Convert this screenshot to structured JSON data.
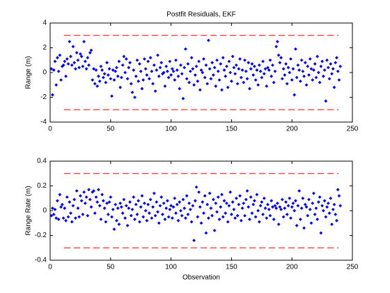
{
  "chart_data": [
    {
      "type": "scatter",
      "title": "Postfit Residuals, EKF",
      "ylabel": "Range (m)",
      "color": "#0000ff",
      "xlim": [
        0,
        250
      ],
      "xticks": [
        0,
        50,
        100,
        150,
        200,
        250
      ],
      "ylim": [
        -4,
        4
      ],
      "yticks": [
        -4,
        -2,
        0,
        2,
        4
      ],
      "hlines": [
        3,
        -3
      ],
      "hline_color": "#ff0000",
      "x": [
        1,
        2,
        3,
        4,
        5,
        6,
        7,
        8,
        9,
        10,
        11,
        12,
        13,
        14,
        15,
        16,
        17,
        18,
        19,
        20,
        21,
        22,
        23,
        24,
        25,
        26,
        27,
        28,
        29,
        30,
        31,
        32,
        33,
        34,
        35,
        36,
        37,
        38,
        39,
        40,
        41,
        42,
        43,
        44,
        45,
        46,
        47,
        48,
        49,
        50,
        51,
        52,
        53,
        54,
        55,
        56,
        57,
        58,
        59,
        60,
        61,
        62,
        63,
        64,
        65,
        66,
        67,
        68,
        69,
        70,
        71,
        72,
        73,
        74,
        75,
        76,
        77,
        78,
        79,
        80,
        81,
        82,
        83,
        84,
        85,
        86,
        87,
        88,
        89,
        90,
        91,
        92,
        93,
        94,
        95,
        96,
        97,
        98,
        99,
        100,
        101,
        102,
        103,
        104,
        105,
        106,
        107,
        108,
        109,
        110,
        111,
        112,
        113,
        114,
        115,
        116,
        117,
        118,
        119,
        120,
        121,
        122,
        123,
        124,
        125,
        126,
        127,
        128,
        129,
        130,
        131,
        132,
        133,
        134,
        135,
        136,
        137,
        138,
        139,
        140,
        141,
        142,
        143,
        144,
        145,
        146,
        147,
        148,
        149,
        150,
        151,
        152,
        153,
        154,
        155,
        156,
        157,
        158,
        159,
        160,
        161,
        162,
        163,
        164,
        165,
        166,
        167,
        168,
        169,
        170,
        171,
        172,
        173,
        174,
        175,
        176,
        177,
        178,
        179,
        180,
        181,
        182,
        183,
        184,
        185,
        186,
        187,
        188,
        189,
        190,
        191,
        192,
        193,
        194,
        195,
        196,
        197,
        198,
        199,
        200,
        201,
        202,
        203,
        204,
        205,
        206,
        207,
        208,
        209,
        210,
        211,
        212,
        213,
        214,
        215,
        216,
        217,
        218,
        219,
        220,
        221,
        222,
        223,
        224,
        225,
        226,
        227,
        228,
        229,
        230,
        231,
        232,
        233,
        234,
        235,
        236,
        237,
        238,
        239,
        240
      ],
      "values": [
        0.3,
        -1.8,
        0.2,
        0.9,
        -1.0,
        1.2,
        0.1,
        1.4,
        -0.6,
        0.5,
        0.6,
        0.9,
        -0.3,
        1.1,
        0.7,
        2.5,
        1.3,
        0.6,
        2.1,
        0.8,
        0.3,
        1.6,
        1.0,
        0.4,
        1.5,
        1.3,
        0.5,
        2.5,
        0.9,
        0.3,
        1.2,
        0.6,
        1.6,
        1.8,
        -0.6,
        0.3,
        -0.9,
        0.2,
        -1.1,
        -0.3,
        -0.7,
        0.5,
        0.2,
        -0.4,
        -0.1,
        -0.8,
        0.8,
        -0.2,
        0.3,
        -0.5,
        -1.9,
        0.2,
        -0.6,
        0.1,
        0.4,
        -0.3,
        0.9,
        -1.2,
        -0.4,
        0.6,
        1.3,
        0.0,
        1.1,
        -0.5,
        0.4,
        0.8,
        -0.9,
        -1.6,
        0.2,
        -2.0,
        -0.3,
        1.0,
        -0.7,
        0.7,
        0.1,
        -1.3,
        -0.6,
        1.1,
        0.3,
        -0.2,
        0.9,
        -0.5,
        1.2,
        0.1,
        -0.9,
        0.6,
        -1.5,
        0.2,
        1.4,
        -0.3,
        0.4,
        0.8,
        -0.1,
        0.0,
        -1.1,
        0.5,
        0.1,
        -0.4,
        0.9,
        -0.2,
        0.3,
        0.1,
        -0.6,
        1.0,
        0.2,
        -0.3,
        -1.3,
        0.6,
        -0.1,
        -2.1,
        0.4,
        1.9,
        -0.5,
        0.7,
        -0.8,
        0.1,
        1.2,
        0.3,
        -1.0,
        -0.2,
        0.5,
        -0.7,
        0.9,
        -1.4,
        0.2,
        0.0,
        1.1,
        -0.4,
        0.6,
        -0.9,
        2.6,
        0.3,
        -0.5,
        0.8,
        -0.2,
        0.4,
        -1.1,
        1.0,
        0.1,
        -0.6,
        0.7,
        -1.4,
        1.2,
        0.2,
        -0.3,
        0.5,
        -1.2,
        0.9,
        0.0,
        -0.7,
        1.3,
        0.4,
        -0.1,
        0.6,
        -0.9,
        0.3,
        1.1,
        -0.4,
        0.2,
        -0.8,
        1.0,
        0.1,
        -0.5,
        0.8,
        -1.3,
        0.3,
        0.7,
        -0.2,
        0.5,
        -0.6,
        0.2,
        -1.0,
        0.6,
        0.1,
        -0.4,
        0.9,
        -0.1,
        0.3,
        -1.1,
        0.4,
        0.2,
        1.0,
        -0.3,
        0.6,
        -0.8,
        0.1,
        2.1,
        2.5,
        1.4,
        0.8,
        1.2,
        -0.5,
        0.3,
        -0.2,
        0.7,
        -0.9,
        0.4,
        0.0,
        1.1,
        -0.6,
        0.3,
        -1.8,
        1.9,
        -0.4,
        0.6,
        0.2,
        -0.7,
        1.0,
        0.1,
        -0.3,
        0.8,
        -1.0,
        0.5,
        -0.2,
        1.1,
        0.3,
        -0.6,
        0.2,
        0.7,
        -0.4,
        1.3,
        0.0,
        -0.8,
        0.5,
        0.9,
        -0.3,
        0.2,
        -2.3,
        1.0,
        0.4,
        -0.5,
        0.7,
        -0.1,
        0.3,
        -1.2,
        0.8,
        1.2,
        0.1,
        -0.6,
        0.5
      ]
    },
    {
      "type": "scatter",
      "ylabel": "Range Rate (m)",
      "xlabel": "Observation",
      "color": "#0000ff",
      "xlim": [
        0,
        250
      ],
      "xticks": [
        0,
        50,
        100,
        150,
        200,
        250
      ],
      "ylim": [
        -0.4,
        0.4
      ],
      "yticks": [
        -0.4,
        -0.2,
        0,
        0.2,
        0.4
      ],
      "hlines": [
        0.3,
        -0.3
      ],
      "hline_color": "#ff0000",
      "x": [
        1,
        2,
        3,
        4,
        5,
        6,
        7,
        8,
        9,
        10,
        11,
        12,
        13,
        14,
        15,
        16,
        17,
        18,
        19,
        20,
        21,
        22,
        23,
        24,
        25,
        26,
        27,
        28,
        29,
        30,
        31,
        32,
        33,
        34,
        35,
        36,
        37,
        38,
        39,
        40,
        41,
        42,
        43,
        44,
        45,
        46,
        47,
        48,
        49,
        50,
        51,
        52,
        53,
        54,
        55,
        56,
        57,
        58,
        59,
        60,
        61,
        62,
        63,
        64,
        65,
        66,
        67,
        68,
        69,
        70,
        71,
        72,
        73,
        74,
        75,
        76,
        77,
        78,
        79,
        80,
        81,
        82,
        83,
        84,
        85,
        86,
        87,
        88,
        89,
        90,
        91,
        92,
        93,
        94,
        95,
        96,
        97,
        98,
        99,
        100,
        101,
        102,
        103,
        104,
        105,
        106,
        107,
        108,
        109,
        110,
        111,
        112,
        113,
        114,
        115,
        116,
        117,
        118,
        119,
        120,
        121,
        122,
        123,
        124,
        125,
        126,
        127,
        128,
        129,
        130,
        131,
        132,
        133,
        134,
        135,
        136,
        137,
        138,
        139,
        140,
        141,
        142,
        143,
        144,
        145,
        146,
        147,
        148,
        149,
        150,
        151,
        152,
        153,
        154,
        155,
        156,
        157,
        158,
        159,
        160,
        161,
        162,
        163,
        164,
        165,
        166,
        167,
        168,
        169,
        170,
        171,
        172,
        173,
        174,
        175,
        176,
        177,
        178,
        179,
        180,
        181,
        182,
        183,
        184,
        185,
        186,
        187,
        188,
        189,
        190,
        191,
        192,
        193,
        194,
        195,
        196,
        197,
        198,
        199,
        200,
        201,
        202,
        203,
        204,
        205,
        206,
        207,
        208,
        209,
        210,
        211,
        212,
        213,
        214,
        215,
        216,
        217,
        218,
        219,
        220,
        221,
        222,
        223,
        224,
        225,
        226,
        227,
        228,
        229,
        230,
        231,
        232,
        233,
        234,
        235,
        236,
        237,
        238,
        239,
        240
      ],
      "values": [
        -0.04,
        0.02,
        -0.03,
        0.01,
        -0.06,
        0.08,
        -0.07,
        0.13,
        0.03,
        0.05,
        -0.06,
        0.02,
        -0.08,
        0.11,
        -0.05,
        0.07,
        -0.02,
        -0.09,
        0.04,
        0.09,
        -0.06,
        0.16,
        0.02,
        -0.05,
        0.12,
        0.08,
        -0.03,
        0.15,
        0.06,
        0.11,
        -0.04,
        0.17,
        0.09,
        0.03,
        0.15,
        0.16,
        -0.02,
        0.11,
        0.07,
        0.17,
        0.04,
        -0.07,
        0.13,
        0.08,
        0.02,
        -0.09,
        0.06,
        -0.03,
        0.07,
        0.11,
        -0.05,
        0.01,
        -0.15,
        0.05,
        -0.08,
        0.02,
        -0.11,
        0.06,
        0.03,
        -0.02,
        0.09,
        -0.06,
        0.04,
        -0.12,
        0.02,
        0.07,
        -0.04,
        0.01,
        0.11,
        -0.07,
        0.05,
        -0.03,
        0.08,
        -0.09,
        0.03,
        0.12,
        -0.05,
        0.06,
        0.0,
        -0.08,
        0.05,
        -0.02,
        0.09,
        -0.06,
        0.03,
        0.14,
        -0.04,
        0.07,
        -0.01,
        -0.1,
        0.04,
        0.11,
        -0.03,
        0.06,
        -0.07,
        0.02,
        0.08,
        -0.05,
        0.01,
        0.04,
        -0.06,
        0.03,
        0.1,
        -0.02,
        0.05,
        -0.08,
        0.07,
        0.0,
        -0.04,
        0.09,
        0.02,
        -0.06,
        0.12,
        -0.03,
        0.06,
        0.01,
        -0.09,
        0.04,
        -0.24,
        0.08,
        0.19,
        -0.05,
        0.15,
        0.03,
        -0.1,
        0.07,
        -0.02,
        0.12,
        -0.18,
        0.05,
        -0.06,
        0.14,
        0.02,
        -0.04,
        0.09,
        -0.16,
        0.06,
        -0.01,
        0.11,
        -0.07,
        0.03,
        0.13,
        -0.05,
        0.08,
        -0.02,
        0.06,
        -0.09,
        0.04,
        0.15,
        -0.03,
        0.07,
        0.01,
        -0.06,
        0.1,
        -0.04,
        0.05,
        0.12,
        -0.08,
        0.02,
        0.06,
        -0.04,
        0.09,
        0.16,
        0.03,
        -0.07,
        0.11,
        -0.02,
        0.05,
        0.08,
        -0.05,
        0.13,
        0.0,
        -0.09,
        0.04,
        0.07,
        -0.03,
        0.1,
        0.02,
        -0.06,
        0.05,
        0.01,
        -0.04,
        0.08,
        0.03,
        -0.07,
        0.04,
        0.02,
        0.06,
        -0.11,
        0.03,
        0.01,
        0.09,
        -0.05,
        0.02,
        0.07,
        -0.03,
        0.04,
        0.1,
        -0.06,
        0.03,
        0.06,
        0.0,
        0.08,
        -0.12,
        0.04,
        0.16,
        -0.07,
        0.02,
        0.1,
        -0.14,
        0.05,
        0.03,
        -0.04,
        0.09,
        0.01,
        -0.1,
        0.06,
        0.14,
        -0.03,
        0.02,
        -0.07,
        0.07,
        0.11,
        -0.18,
        0.04,
        0.0,
        0.08,
        -0.05,
        0.03,
        0.06,
        -0.02,
        0.1,
        -0.11,
        0.01,
        0.05,
        -0.03,
        -0.08,
        0.17,
        0.12,
        0.04
      ]
    }
  ]
}
